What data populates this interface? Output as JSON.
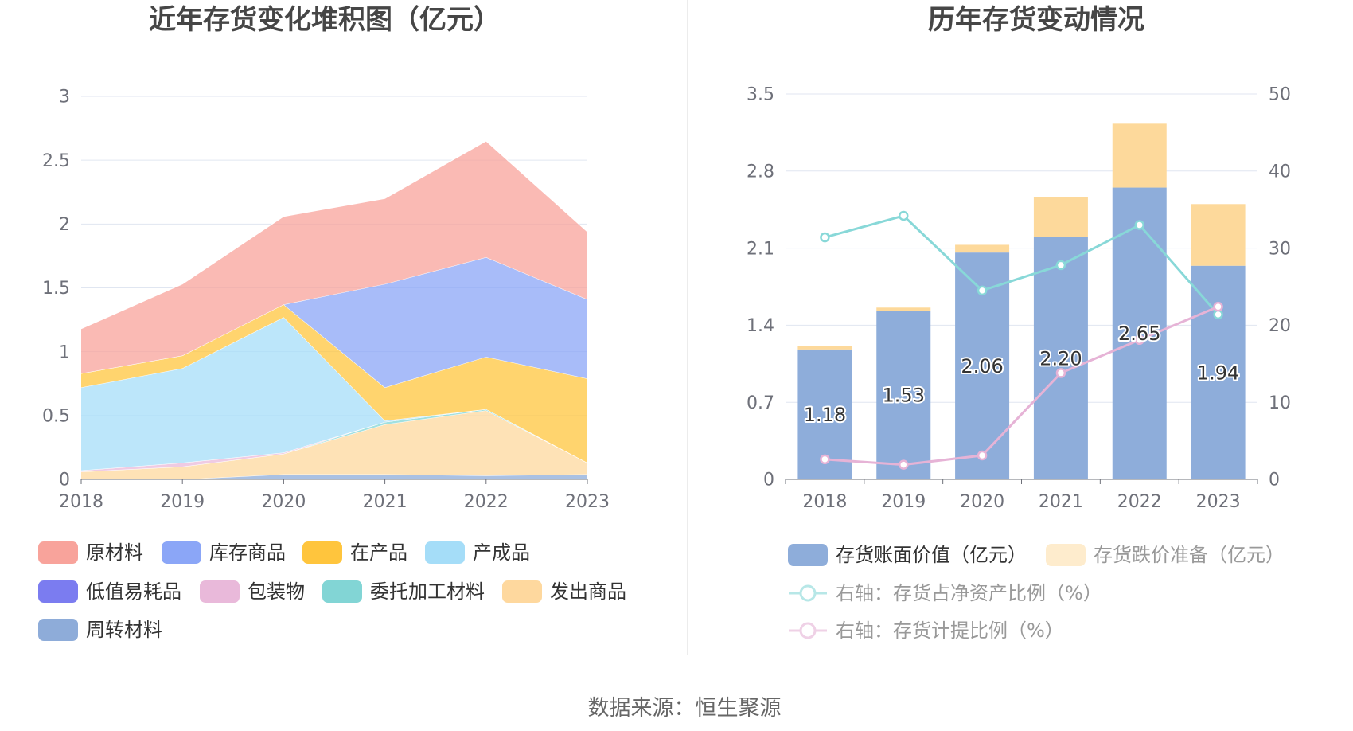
{
  "footer": {
    "source": "数据来源：恒生聚源"
  },
  "chart_data": [
    {
      "type": "area",
      "stacked": true,
      "title": "近年存货变化堆积图（亿元）",
      "categories": [
        "2018",
        "2019",
        "2020",
        "2021",
        "2022",
        "2023"
      ],
      "ylim": [
        0,
        3
      ],
      "yticks": [
        "0",
        "0.5",
        "1",
        "1.5",
        "2",
        "2.5",
        "3"
      ],
      "grid": true,
      "legend_position": "bottom",
      "series": [
        {
          "name": "原材料",
          "color": "#f8a39b",
          "values": [
            0.35,
            0.56,
            0.69,
            0.67,
            0.91,
            0.53
          ]
        },
        {
          "name": "库存商品",
          "color": "#8ba6f7",
          "values": [
            0,
            0,
            0,
            0.81,
            0.78,
            0.62
          ]
        },
        {
          "name": "在产品",
          "color": "#ffc53d",
          "values": [
            0.11,
            0.1,
            0.1,
            0.26,
            0.41,
            0.66
          ]
        },
        {
          "name": "产成品",
          "color": "#a5ddf8",
          "values": [
            0.65,
            0.74,
            1.06,
            0.01,
            0,
            0
          ]
        },
        {
          "name": "低值易耗品",
          "color": "#7b7cf0",
          "values": [
            0,
            0,
            0,
            0,
            0,
            0
          ]
        },
        {
          "name": "包装物",
          "color": "#e9b9da",
          "values": [
            0.01,
            0.03,
            0.01,
            0,
            0,
            0
          ]
        },
        {
          "name": "委托加工材料",
          "color": "#82d5d5",
          "values": [
            0,
            0,
            0,
            0.02,
            0.01,
            0
          ]
        },
        {
          "name": "发出商品",
          "color": "#fed89e",
          "values": [
            0.06,
            0.1,
            0.16,
            0.39,
            0.51,
            0.09
          ]
        },
        {
          "name": "周转材料",
          "color": "#8eacd9",
          "values": [
            0,
            0,
            0.04,
            0.04,
            0.03,
            0.04
          ]
        }
      ]
    },
    {
      "type": "bar",
      "title": "历年存货变动情况",
      "categories": [
        "2018",
        "2019",
        "2020",
        "2021",
        "2022",
        "2023"
      ],
      "ylim_left": [
        0,
        3.5
      ],
      "yticks_left": [
        "0",
        "0.7",
        "1.4",
        "2.1",
        "2.8",
        "3.5"
      ],
      "ylim_right": [
        0,
        50
      ],
      "yticks_right": [
        "0",
        "10",
        "20",
        "30",
        "40",
        "50"
      ],
      "grid": true,
      "legend_position": "bottom",
      "series": [
        {
          "name": "存货账面价值（亿元）",
          "type": "bar",
          "stacked": true,
          "axis": "left",
          "color": "#8eadda",
          "values": [
            1.18,
            1.53,
            2.06,
            2.2,
            2.65,
            1.94
          ],
          "data_labels": true
        },
        {
          "name": "存货跌价准备（亿元）",
          "type": "bar",
          "stacked": true,
          "axis": "left",
          "color": "#fdd99b",
          "values": [
            0.03,
            0.03,
            0.07,
            0.36,
            0.58,
            0.56
          ]
        },
        {
          "name": "右轴：存货占净资产比例（%）",
          "type": "line",
          "axis": "right",
          "color": "#88d8d8",
          "values": [
            31.4,
            34.2,
            24.5,
            27.8,
            33.0,
            21.4
          ]
        },
        {
          "name": "右轴：存货计提比例（%）",
          "type": "line",
          "axis": "right",
          "color": "#e6b3d6",
          "values": [
            2.6,
            1.9,
            3.1,
            13.8,
            18.1,
            22.4
          ]
        }
      ]
    }
  ]
}
